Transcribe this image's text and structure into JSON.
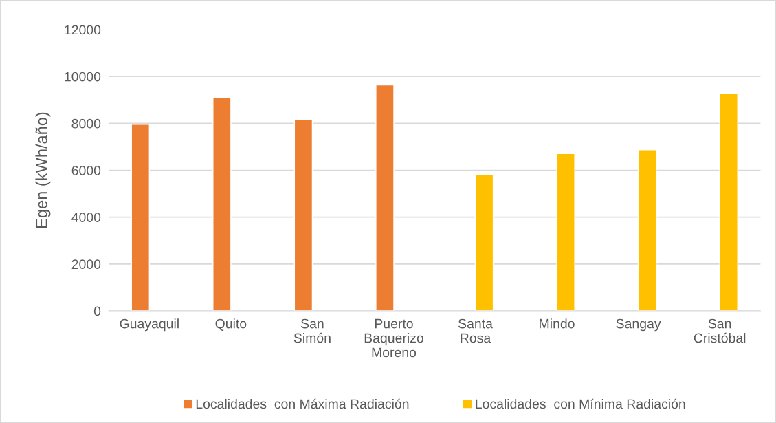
{
  "chart_data": {
    "type": "bar",
    "ylabel": "Egen (kWh/año)",
    "categories": [
      "Guayaquil",
      "Quito",
      "San\nSimón",
      "Puerto\nBaquerizo\nMoreno",
      "Santa\nRosa",
      "Mindo",
      "Sangay",
      "San\nCristóbal"
    ],
    "series": [
      {
        "name": "Localidades  con Máxima Radiación",
        "color": "#ed7d31",
        "values": [
          7960,
          9090,
          8150,
          9640,
          null,
          null,
          null,
          null
        ]
      },
      {
        "name": "Localidades  con Mínima Radiación",
        "color": "#ffc000",
        "values": [
          null,
          null,
          null,
          null,
          5800,
          6710,
          6870,
          9280
        ]
      }
    ],
    "ylim": [
      0,
      12000
    ],
    "yticks": [
      0,
      2000,
      4000,
      6000,
      8000,
      10000,
      12000
    ],
    "grid": "y",
    "legend": "bottom"
  }
}
